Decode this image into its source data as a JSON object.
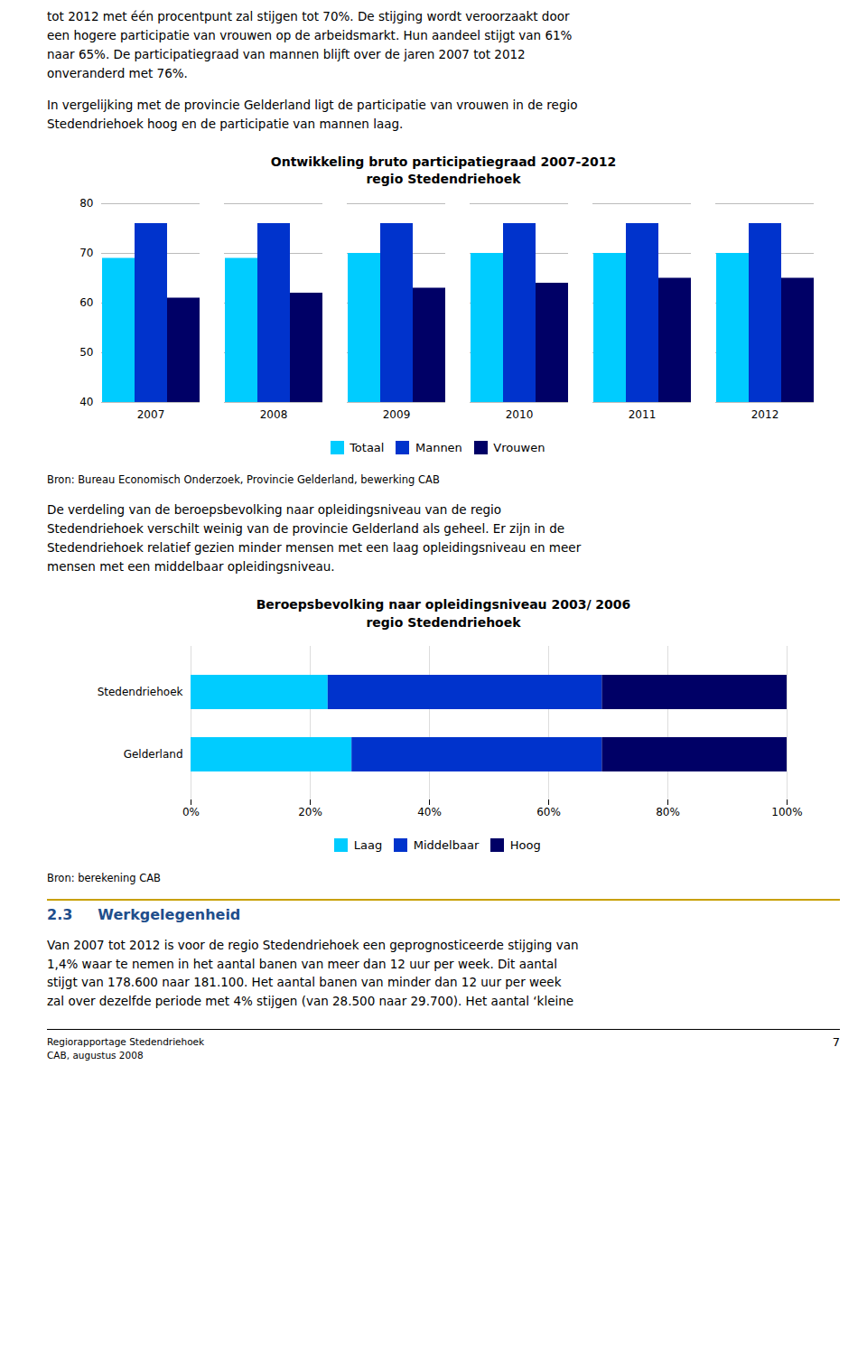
{
  "header_text": [
    "tot 2012 met één procentpunt zal stijgen tot 70%. De stijging wordt veroorzaakt door\neen hogere participatie van vrouwen op de arbeidsmarkt. Hun aandeel stijgt van 61%\nnaar 65%. De participatiegraad van mannen blijft over de jaren 2007 tot 2012\nonveranderd met 76%.",
    "In vergelijking met de provincie Gelderland ligt de participatie van vrouwen in de regio\nStedendriehoek hoog en de participatie van mannen laag."
  ],
  "chart_data": [
    {
      "type": "bar",
      "title": "Ontwikkeling bruto participatiegraad 2007-2012\nregio Stedendriehoek",
      "categories": [
        "2007",
        "2008",
        "2009",
        "2010",
        "2011",
        "2012"
      ],
      "series": [
        {
          "name": "Totaal",
          "color": "#00CCFF",
          "values": [
            69,
            69,
            70,
            70,
            70,
            70
          ]
        },
        {
          "name": "Mannen",
          "color": "#0033CC",
          "values": [
            76,
            76,
            76,
            76,
            76,
            76
          ]
        },
        {
          "name": "Vrouwen",
          "color": "#000066",
          "values": [
            61,
            62,
            63,
            64,
            65,
            65
          ]
        }
      ],
      "ylim": [
        40,
        80
      ],
      "yticks": [
        40,
        50,
        60,
        70,
        80
      ],
      "grid": true,
      "legend": "bottom",
      "annotations": [
        "Bron: Bureau Economisch Onderzoek, Provincie Gelderland, bewerking CAB"
      ]
    },
    {
      "type": "bar",
      "orientation": "horizontal",
      "stacked": true,
      "title": "Beroepsbevolking naar opleidingsniveau 2003/ 2006\nregio Stedendriehoek",
      "categories": [
        "Stedendriehoek",
        "Gelderland"
      ],
      "series": [
        {
          "name": "Laag",
          "color": "#00CCFF",
          "values": [
            23,
            27
          ]
        },
        {
          "name": "Middelbaar",
          "color": "#0033CC",
          "values": [
            46,
            42
          ]
        },
        {
          "name": "Hoog",
          "color": "#000066",
          "values": [
            31,
            31
          ]
        }
      ],
      "xlim": [
        0,
        100
      ],
      "xticks": [
        {
          "value": 0,
          "label": "0%"
        },
        {
          "value": 20,
          "label": "20%"
        },
        {
          "value": 40,
          "label": "40%"
        },
        {
          "value": 60,
          "label": "60%"
        },
        {
          "value": 80,
          "label": "80%"
        },
        {
          "value": 100,
          "label": "100%"
        }
      ],
      "grid": true,
      "legend": "bottom",
      "annotations": [
        "Bron: berekening CAB"
      ]
    }
  ],
  "middle_text": [
    "De verdeling van de beroepsbevolking naar opleidingsniveau van de regio\nStedendriehoek verschilt weinig van de provincie Gelderland als geheel. Er zijn in de\nStedendriehoek relatief gezien minder mensen met een laag opleidingsniveau en meer\nmensen met een middelbaar opleidingsniveau."
  ],
  "section_number": "2.3",
  "section_title": "Werkgelegenheid",
  "section_text": "Van 2007 tot 2012 is voor de regio Stedendriehoek een geprognosticeerde stijging van\n1,4% waar te nemen in het aantal banen van meer dan 12 uur per week. Dit aantal\nstijgt van 178.600 naar 181.100. Het aantal banen van minder dan 12 uur per week\nzal over dezelfde periode met 4% stijgen (van 28.500 naar 29.700). Het aantal ‘kleine",
  "footer_left": "Regiorapportage Stedendriehoek\nCAB, augustus 2008",
  "footer_right": "7"
}
